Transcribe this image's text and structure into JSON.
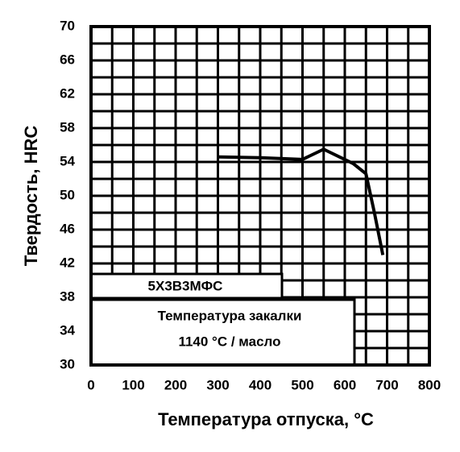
{
  "chart_data": {
    "type": "line",
    "xlabel": "Температура отпуска, °С",
    "ylabel": "Твердость, HRC",
    "x": [
      300,
      400,
      500,
      550,
      620,
      650,
      670,
      690
    ],
    "values": [
      54.6,
      54.5,
      54.3,
      55.5,
      53.8,
      52.6,
      48,
      43
    ],
    "color": "#000000",
    "xlim": [
      0,
      800
    ],
    "xticks": [
      0,
      100,
      200,
      300,
      400,
      500,
      600,
      700,
      800
    ],
    "ylim": [
      30,
      70
    ],
    "yticks": [
      30,
      34,
      38,
      42,
      46,
      50,
      54,
      58,
      62,
      66,
      70
    ],
    "grid": true,
    "annotations": [
      "5Х3В3МФС",
      "Температура закалки",
      "1140 °С / масло"
    ]
  }
}
